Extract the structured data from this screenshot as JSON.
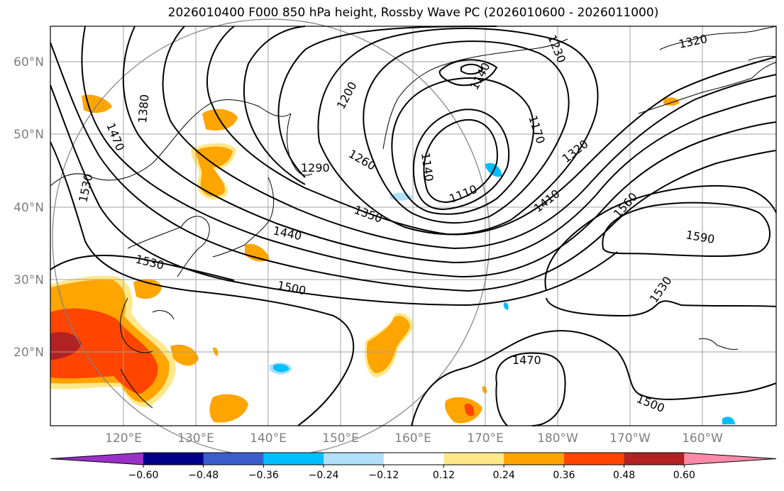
{
  "title": "2026010400 F000 850 hPa height, Rossby Wave PC (2026010600 - 2026011000)",
  "lat_ticks": [
    "60°N",
    "50°N",
    "40°N",
    "30°N",
    "20°N"
  ],
  "lon_ticks": [
    "120°E",
    "130°E",
    "140°E",
    "150°E",
    "160°E",
    "170°E",
    "180°W",
    "170°W",
    "160°W"
  ],
  "contour_labels": {
    "c1320a": "1320",
    "c1230": "1230",
    "c1140a": "1140",
    "c1200": "1200",
    "c1380": "1380",
    "c1470a": "1470",
    "c1170": "1170",
    "c1320b": "1320",
    "c1530a": "1530",
    "c1290": "1290",
    "c1260": "1260",
    "c1140b": "1140",
    "c1110": "1110",
    "c1410": "1410",
    "c1560": "1560",
    "c1350": "1350",
    "c1440": "1440",
    "c1590": "1590",
    "c1530b": "1530",
    "c1500a": "1500",
    "c1530c": "1530",
    "c1470b": "1470",
    "c1500b": "1500"
  },
  "colorbar": {
    "tick_labels": [
      "−0.60",
      "−0.48",
      "−0.36",
      "−0.24",
      "−0.12",
      "0.12",
      "0.24",
      "0.36",
      "0.48",
      "0.60"
    ],
    "colors": [
      "#9a30c8",
      "#00008b",
      "#3a5fcd",
      "#00bfff",
      "#b0e0fa",
      "#ffffff",
      "#ffe88a",
      "#ffa500",
      "#ff4500",
      "#b22222",
      "#ff8aa8"
    ]
  }
}
